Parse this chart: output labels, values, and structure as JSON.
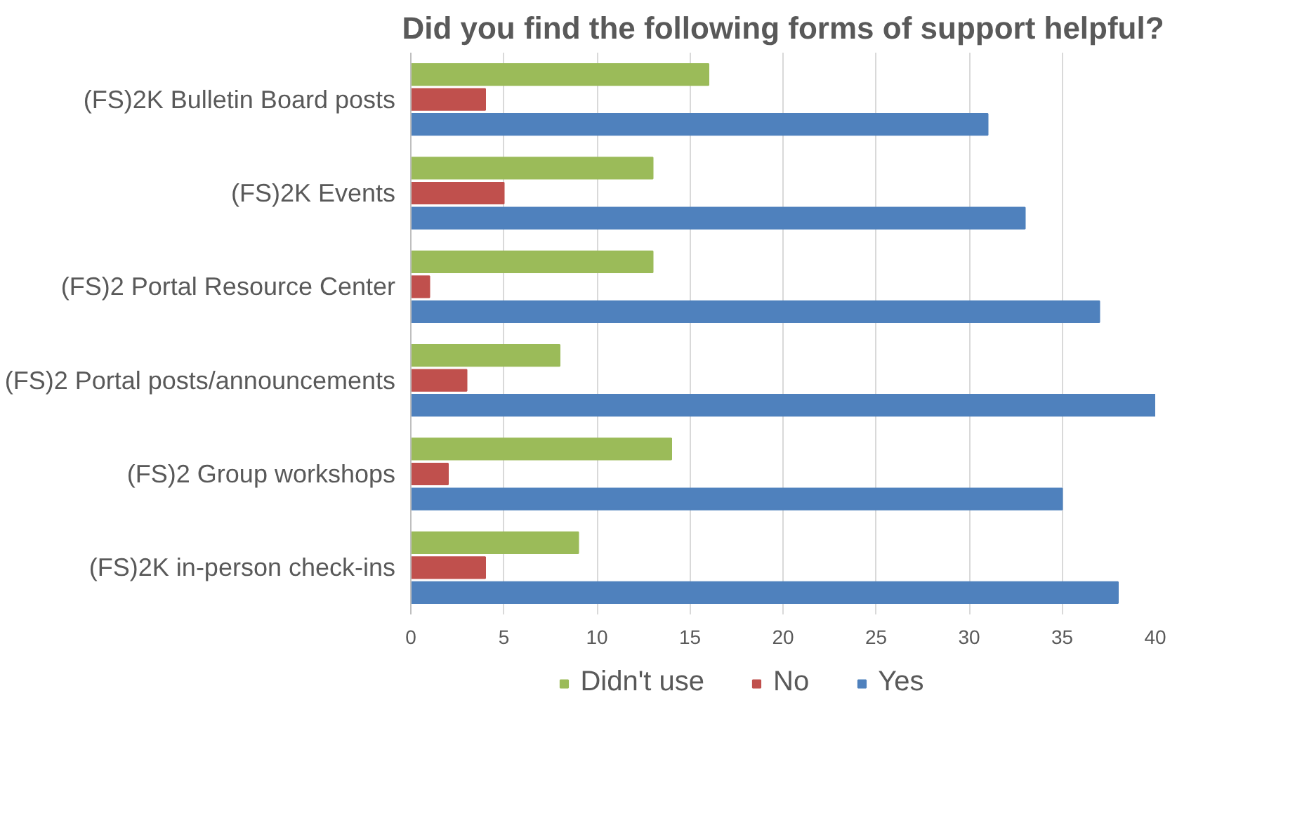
{
  "chart_data": {
    "type": "bar",
    "orientation": "horizontal",
    "title": "Did you find the following forms of support helpful?",
    "categories": [
      "(FS)2K Bulletin Board posts",
      "(FS)2K Events",
      "(FS)2 Portal Resource Center",
      "(FS)2 Portal posts/announcements",
      "(FS)2 Group workshops",
      "(FS)2K in-person check-ins"
    ],
    "series": [
      {
        "name": "Didn't use",
        "color": "#9bbb59",
        "values": [
          16,
          13,
          13,
          8,
          14,
          9
        ]
      },
      {
        "name": "No",
        "color": "#c0504d",
        "values": [
          4,
          5,
          1,
          3,
          2,
          4
        ]
      },
      {
        "name": "Yes",
        "color": "#4f81bd",
        "values": [
          31,
          33,
          37,
          40,
          35,
          38
        ]
      }
    ],
    "xlim": [
      0,
      40
    ],
    "xticks": [
      0,
      5,
      10,
      15,
      20,
      25,
      30,
      35,
      40
    ],
    "grid": "x",
    "legend": "bottom"
  }
}
